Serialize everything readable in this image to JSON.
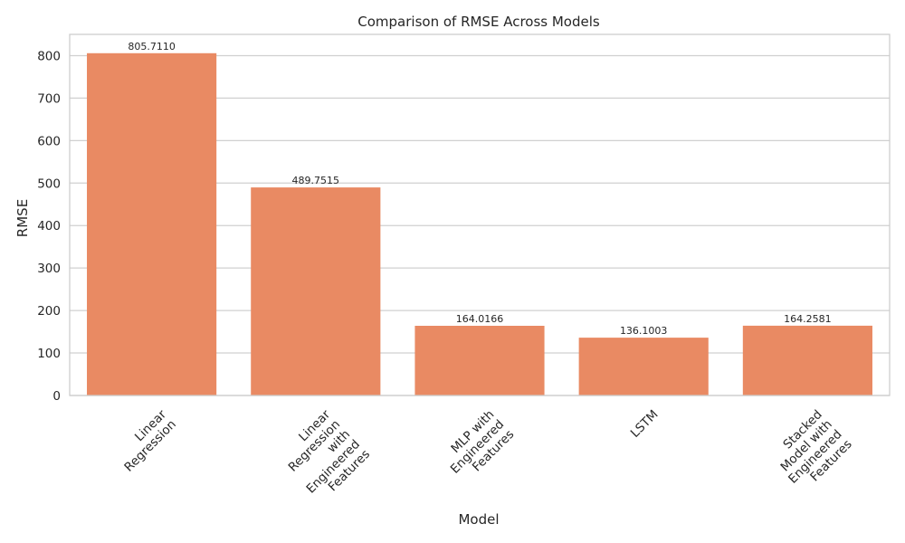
{
  "chart_data": {
    "type": "bar",
    "title": "Comparison of RMSE Across Models",
    "xlabel": "Model",
    "ylabel": "RMSE",
    "categories": [
      [
        "Linear",
        "Regression"
      ],
      [
        "Linear",
        "Regression",
        "with",
        "Engineered",
        "Features"
      ],
      [
        "MLP with",
        "Engineered",
        "Features"
      ],
      [
        "LSTM"
      ],
      [
        "Stacked",
        "Model with",
        "Engineered",
        "Features"
      ]
    ],
    "values": [
      805.711,
      489.7515,
      164.0166,
      136.1003,
      164.2581
    ],
    "data_labels": [
      "805.7110",
      "489.7515",
      "164.0166",
      "136.1003",
      "164.2581"
    ],
    "ylim": [
      0,
      850
    ],
    "yticks": [
      0,
      100,
      200,
      300,
      400,
      500,
      600,
      700,
      800
    ],
    "grid": true,
    "bar_color": "#e98a63",
    "grid_color": "#d0d0d0",
    "frame_color": "#cccccc"
  }
}
